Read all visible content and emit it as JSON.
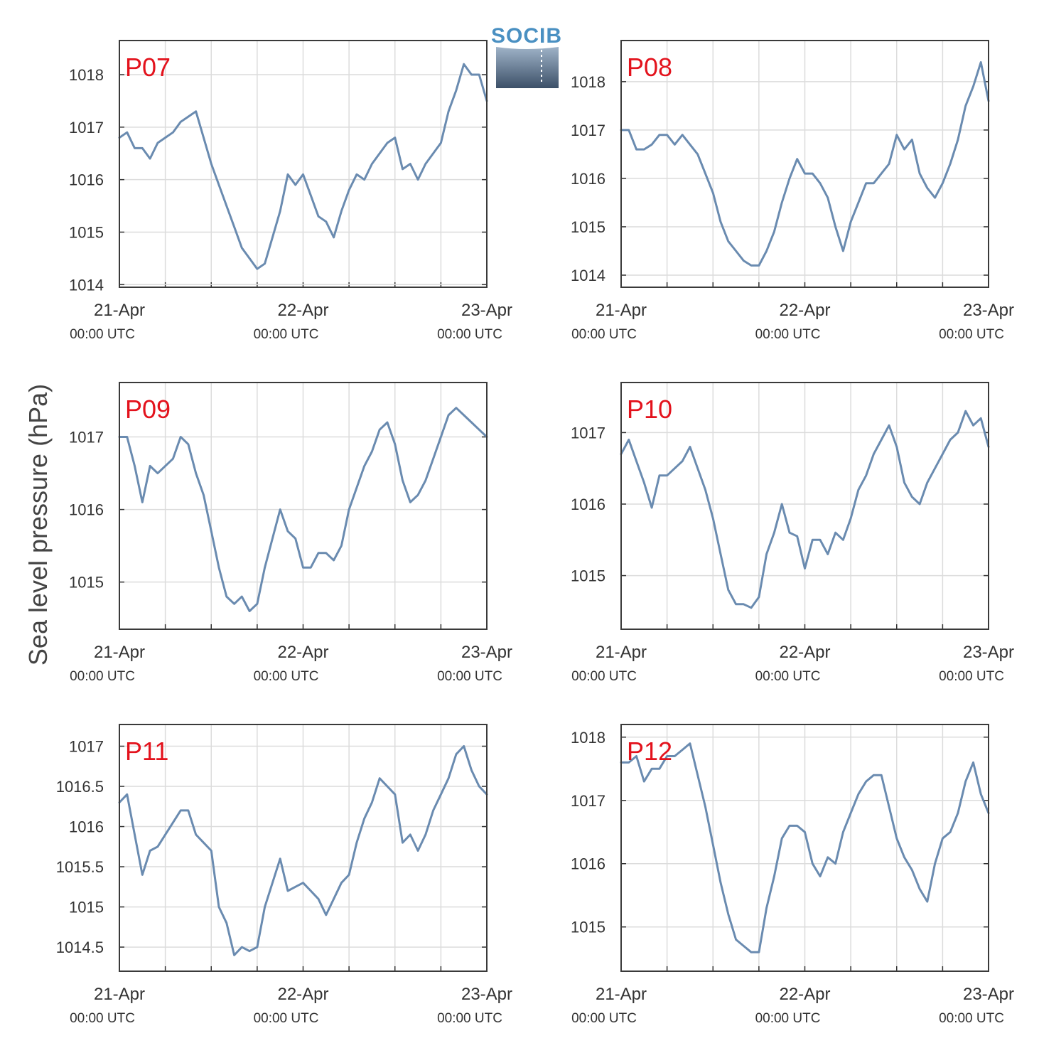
{
  "figure": {
    "ylabel": "Sea level pressure (hPa)",
    "logo_text": "SOCIB"
  },
  "chart_data": [
    {
      "type": "line",
      "title": "P07",
      "series_color": "#6a8bb0",
      "x_unit": "hours since 21-Apr 00:00 UTC",
      "x_ticks": [
        {
          "date": "21-Apr",
          "time": "00:00 UTC"
        },
        {
          "date": "22-Apr",
          "time": "00:00 UTC"
        },
        {
          "date": "23-Apr",
          "time": "00:00 UTC"
        }
      ],
      "xlim": [
        0,
        48
      ],
      "ylim": [
        1013.95,
        1018.65
      ],
      "yticks": [
        "1014",
        "1015",
        "1016",
        "1017",
        "1018"
      ],
      "x": [
        0,
        1,
        2,
        3,
        4,
        5,
        6,
        7,
        8,
        9,
        10,
        11,
        12,
        13,
        14,
        15,
        16,
        17,
        18,
        19,
        20,
        21,
        22,
        23,
        24,
        25,
        26,
        27,
        28,
        29,
        30,
        31,
        32,
        33,
        34,
        35,
        36,
        37,
        38,
        39,
        40,
        41,
        42,
        43,
        44,
        45,
        46,
        47,
        48
      ],
      "values": [
        1016.8,
        1016.9,
        1016.6,
        1016.6,
        1016.4,
        1016.7,
        1016.8,
        1016.9,
        1017.1,
        1017.2,
        1017.3,
        1016.8,
        1016.3,
        1015.9,
        1015.5,
        1015.1,
        1014.7,
        1014.5,
        1014.3,
        1014.4,
        1014.9,
        1015.4,
        1016.1,
        1015.9,
        1016.1,
        1015.7,
        1015.3,
        1015.2,
        1014.9,
        1015.4,
        1015.8,
        1016.1,
        1016.0,
        1016.3,
        1016.5,
        1016.7,
        1016.8,
        1016.2,
        1016.3,
        1016.0,
        1016.3,
        1016.5,
        1016.7,
        1017.3,
        1017.7,
        1018.2,
        1018.0,
        1018.0,
        1017.5
      ]
    },
    {
      "type": "line",
      "title": "P08",
      "series_color": "#6a8bb0",
      "x_unit": "hours since 21-Apr 00:00 UTC",
      "x_ticks": [
        {
          "date": "21-Apr",
          "time": "00:00 UTC"
        },
        {
          "date": "22-Apr",
          "time": "00:00 UTC"
        },
        {
          "date": "23-Apr",
          "time": "00:00 UTC"
        }
      ],
      "xlim": [
        0,
        48
      ],
      "ylim": [
        1013.75,
        1018.85
      ],
      "yticks": [
        "1014",
        "1015",
        "1016",
        "1017",
        "1018"
      ],
      "x": [
        0,
        1,
        2,
        3,
        4,
        5,
        6,
        7,
        8,
        9,
        10,
        11,
        12,
        13,
        14,
        15,
        16,
        17,
        18,
        19,
        20,
        21,
        22,
        23,
        24,
        25,
        26,
        27,
        28,
        29,
        30,
        31,
        32,
        33,
        34,
        35,
        36,
        37,
        38,
        39,
        40,
        41,
        42,
        43,
        44,
        45,
        46,
        47,
        48
      ],
      "values": [
        1017.0,
        1017.0,
        1016.6,
        1016.6,
        1016.7,
        1016.9,
        1016.9,
        1016.7,
        1016.9,
        1016.7,
        1016.5,
        1016.1,
        1015.7,
        1015.1,
        1014.7,
        1014.5,
        1014.3,
        1014.2,
        1014.2,
        1014.5,
        1014.9,
        1015.5,
        1016.0,
        1016.4,
        1016.1,
        1016.1,
        1015.9,
        1015.6,
        1015.0,
        1014.5,
        1015.1,
        1015.5,
        1015.9,
        1015.9,
        1016.1,
        1016.3,
        1016.9,
        1016.6,
        1016.8,
        1016.1,
        1015.8,
        1015.6,
        1015.9,
        1016.3,
        1016.8,
        1017.5,
        1017.9,
        1018.4,
        1017.6
      ]
    },
    {
      "type": "line",
      "title": "P09",
      "series_color": "#6a8bb0",
      "x_unit": "hours since 21-Apr 00:00 UTC",
      "x_ticks": [
        {
          "date": "21-Apr",
          "time": "00:00 UTC"
        },
        {
          "date": "22-Apr",
          "time": "00:00 UTC"
        },
        {
          "date": "23-Apr",
          "time": "00:00 UTC"
        }
      ],
      "xlim": [
        0,
        48
      ],
      "ylim": [
        1014.35,
        1017.75
      ],
      "yticks": [
        "1015",
        "1016",
        "1017"
      ],
      "x": [
        0,
        1,
        2,
        3,
        4,
        5,
        6,
        7,
        8,
        9,
        10,
        11,
        12,
        13,
        14,
        15,
        16,
        17,
        18,
        19,
        20,
        21,
        22,
        23,
        24,
        25,
        26,
        27,
        28,
        29,
        30,
        31,
        32,
        33,
        34,
        35,
        36,
        37,
        38,
        39,
        40,
        41,
        42,
        43,
        44,
        45,
        46,
        47,
        48
      ],
      "values": [
        1017.0,
        1017.0,
        1016.6,
        1016.1,
        1016.6,
        1016.5,
        1016.6,
        1016.7,
        1017.0,
        1016.9,
        1016.5,
        1016.2,
        1015.7,
        1015.2,
        1014.8,
        1014.7,
        1014.8,
        1014.6,
        1014.7,
        1015.2,
        1015.6,
        1016.0,
        1015.7,
        1015.6,
        1015.2,
        1015.2,
        1015.4,
        1015.4,
        1015.3,
        1015.5,
        1016.0,
        1016.3,
        1016.6,
        1016.8,
        1017.1,
        1017.2,
        1016.9,
        1016.4,
        1016.1,
        1016.2,
        1016.4,
        1016.7,
        1017.0,
        1017.3,
        1017.4,
        1017.3,
        1017.2,
        1017.1,
        1017.0
      ]
    },
    {
      "type": "line",
      "title": "P10",
      "series_color": "#6a8bb0",
      "x_unit": "hours since 21-Apr 00:00 UTC",
      "x_ticks": [
        {
          "date": "21-Apr",
          "time": "00:00 UTC"
        },
        {
          "date": "22-Apr",
          "time": "00:00 UTC"
        },
        {
          "date": "23-Apr",
          "time": "00:00 UTC"
        }
      ],
      "xlim": [
        0,
        48
      ],
      "ylim": [
        1014.25,
        1017.7
      ],
      "yticks": [
        "1015",
        "1016",
        "1017"
      ],
      "x": [
        0,
        1,
        2,
        3,
        4,
        5,
        6,
        7,
        8,
        9,
        10,
        11,
        12,
        13,
        14,
        15,
        16,
        17,
        18,
        19,
        20,
        21,
        22,
        23,
        24,
        25,
        26,
        27,
        28,
        29,
        30,
        31,
        32,
        33,
        34,
        35,
        36,
        37,
        38,
        39,
        40,
        41,
        42,
        43,
        44,
        45,
        46,
        47,
        48
      ],
      "values": [
        1016.7,
        1016.9,
        1016.6,
        1016.3,
        1015.95,
        1016.4,
        1016.4,
        1016.5,
        1016.6,
        1016.8,
        1016.5,
        1016.2,
        1015.8,
        1015.3,
        1014.8,
        1014.6,
        1014.6,
        1014.55,
        1014.7,
        1015.3,
        1015.6,
        1016.0,
        1015.6,
        1015.55,
        1015.1,
        1015.5,
        1015.5,
        1015.3,
        1015.6,
        1015.5,
        1015.8,
        1016.2,
        1016.4,
        1016.7,
        1016.9,
        1017.1,
        1016.8,
        1016.3,
        1016.1,
        1016.0,
        1016.3,
        1016.5,
        1016.7,
        1016.9,
        1017.0,
        1017.3,
        1017.1,
        1017.2,
        1016.8
      ]
    },
    {
      "type": "line",
      "title": "P11",
      "series_color": "#6a8bb0",
      "x_unit": "hours since 21-Apr 00:00 UTC",
      "x_ticks": [
        {
          "date": "21-Apr",
          "time": "00:00 UTC"
        },
        {
          "date": "22-Apr",
          "time": "00:00 UTC"
        },
        {
          "date": "23-Apr",
          "time": "00:00 UTC"
        }
      ],
      "xlim": [
        0,
        48
      ],
      "ylim": [
        1014.2,
        1017.27
      ],
      "yticks": [
        "1014.5",
        "1015",
        "1015.5",
        "1016",
        "1016.5",
        "1017"
      ],
      "x": [
        0,
        1,
        2,
        3,
        4,
        5,
        6,
        7,
        8,
        9,
        10,
        11,
        12,
        13,
        14,
        15,
        16,
        17,
        18,
        19,
        20,
        21,
        22,
        23,
        24,
        25,
        26,
        27,
        28,
        29,
        30,
        31,
        32,
        33,
        34,
        35,
        36,
        37,
        38,
        39,
        40,
        41,
        42,
        43,
        44,
        45,
        46,
        47,
        48
      ],
      "values": [
        1016.3,
        1016.4,
        1015.9,
        1015.4,
        1015.7,
        1015.75,
        1015.9,
        1016.05,
        1016.2,
        1016.2,
        1015.9,
        1015.8,
        1015.7,
        1015.0,
        1014.8,
        1014.4,
        1014.5,
        1014.45,
        1014.5,
        1015.0,
        1015.3,
        1015.6,
        1015.2,
        1015.25,
        1015.3,
        1015.2,
        1015.1,
        1014.9,
        1015.1,
        1015.3,
        1015.4,
        1015.8,
        1016.1,
        1016.3,
        1016.6,
        1016.5,
        1016.4,
        1015.8,
        1015.9,
        1015.7,
        1015.9,
        1016.2,
        1016.4,
        1016.6,
        1016.9,
        1017.0,
        1016.7,
        1016.5,
        1016.4
      ]
    },
    {
      "type": "line",
      "title": "P12",
      "series_color": "#6a8bb0",
      "x_unit": "hours since 21-Apr 00:00 UTC",
      "x_ticks": [
        {
          "date": "21-Apr",
          "time": "00:00 UTC"
        },
        {
          "date": "22-Apr",
          "time": "00:00 UTC"
        },
        {
          "date": "23-Apr",
          "time": "00:00 UTC"
        }
      ],
      "xlim": [
        0,
        48
      ],
      "ylim": [
        1014.3,
        1018.2
      ],
      "yticks": [
        "1015",
        "1016",
        "1017",
        "1018"
      ],
      "x": [
        0,
        1,
        2,
        3,
        4,
        5,
        6,
        7,
        8,
        9,
        10,
        11,
        12,
        13,
        14,
        15,
        16,
        17,
        18,
        19,
        20,
        21,
        22,
        23,
        24,
        25,
        26,
        27,
        28,
        29,
        30,
        31,
        32,
        33,
        34,
        35,
        36,
        37,
        38,
        39,
        40,
        41,
        42,
        43,
        44,
        45,
        46,
        47,
        48
      ],
      "values": [
        1017.6,
        1017.6,
        1017.7,
        1017.3,
        1017.5,
        1017.5,
        1017.7,
        1017.7,
        1017.8,
        1017.9,
        1017.4,
        1016.9,
        1016.3,
        1015.7,
        1015.2,
        1014.8,
        1014.7,
        1014.6,
        1014.6,
        1015.3,
        1015.8,
        1016.4,
        1016.6,
        1016.6,
        1016.5,
        1016.0,
        1015.8,
        1016.1,
        1016.0,
        1016.5,
        1016.8,
        1017.1,
        1017.3,
        1017.4,
        1017.4,
        1016.9,
        1016.4,
        1016.1,
        1015.9,
        1015.6,
        1015.4,
        1016.0,
        1016.4,
        1016.5,
        1016.8,
        1017.3,
        1017.6,
        1017.1,
        1016.8
      ]
    }
  ]
}
